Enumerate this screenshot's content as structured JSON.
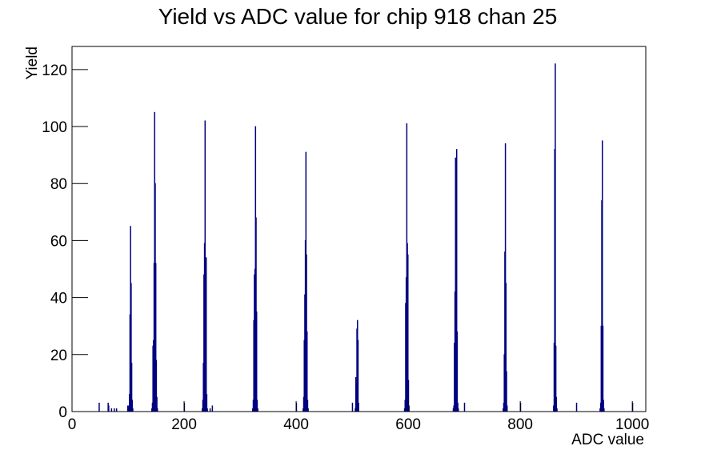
{
  "chart_data": {
    "type": "bar",
    "title": "Yield vs ADC value for chip 918 chan 25",
    "x_label": "ADC value",
    "y_label": "Yield",
    "color": "#000080",
    "x": [
      48,
      64,
      65,
      70,
      75,
      79,
      99,
      100,
      101,
      102,
      103,
      104,
      105,
      106,
      107,
      108,
      142,
      143,
      144,
      145,
      146,
      147,
      148,
      149,
      150,
      151,
      152,
      200,
      232,
      233,
      234,
      235,
      236,
      237,
      238,
      239,
      240,
      241,
      246,
      250,
      322,
      323,
      324,
      325,
      326,
      327,
      328,
      329,
      330,
      331,
      400,
      412,
      413,
      414,
      415,
      416,
      417,
      418,
      419,
      420,
      421,
      500,
      505,
      506,
      507,
      508,
      509,
      510,
      511,
      593,
      594,
      595,
      596,
      597,
      598,
      599,
      600,
      601,
      680,
      681,
      682,
      683,
      684,
      685,
      686,
      687,
      688,
      689,
      700,
      769,
      770,
      771,
      772,
      773,
      774,
      775,
      776,
      800,
      859,
      860,
      861,
      862,
      863,
      864,
      865,
      900,
      942,
      943,
      944,
      945,
      946,
      947,
      948,
      949,
      1000
    ],
    "values": [
      3,
      3,
      2,
      1,
      1,
      1,
      2,
      1,
      2,
      6,
      34,
      65,
      45,
      17,
      4,
      1,
      1,
      3,
      23,
      25,
      52,
      105,
      80,
      52,
      18,
      5,
      1,
      3,
      1,
      4,
      17,
      48,
      59,
      102,
      35,
      54,
      6,
      1,
      1,
      2,
      1,
      4,
      32,
      48,
      50,
      100,
      68,
      35,
      4,
      1,
      3,
      1,
      5,
      25,
      41,
      60,
      91,
      55,
      28,
      4,
      1,
      3,
      1,
      12,
      10,
      29,
      32,
      25,
      3,
      1,
      4,
      38,
      47,
      101,
      59,
      55,
      11,
      2,
      1,
      2,
      24,
      42,
      89,
      61,
      92,
      28,
      3,
      1,
      3,
      1,
      3,
      20,
      56,
      94,
      45,
      14,
      2,
      3,
      2,
      24,
      92,
      122,
      23,
      5,
      1,
      3,
      1,
      3,
      30,
      74,
      95,
      30,
      4,
      1,
      3
    ],
    "xlim": [
      0,
      1024
    ],
    "ylim": [
      0,
      128.1
    ],
    "xticks": [
      0,
      200,
      400,
      600,
      800,
      1000
    ],
    "yticks": [
      0,
      20,
      40,
      60,
      80,
      100,
      120
    ]
  }
}
